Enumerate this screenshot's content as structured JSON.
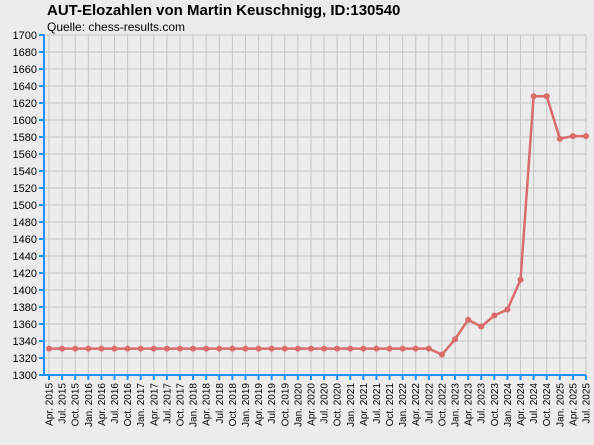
{
  "chart_data": {
    "type": "line",
    "title": "AUT-Elozahlen von Martin Keuschnigg, ID:130540",
    "subtitle": "Quelle: chess-results.com",
    "xlabel": "",
    "ylabel": "",
    "ylim": [
      1300,
      1700
    ],
    "yticks": [
      1300,
      1320,
      1340,
      1360,
      1380,
      1400,
      1420,
      1440,
      1460,
      1480,
      1500,
      1520,
      1540,
      1560,
      1580,
      1600,
      1620,
      1640,
      1660,
      1680,
      1700
    ],
    "grid": true,
    "categories": [
      "Apr. 2015",
      "Jul. 2015",
      "Oct. 2015",
      "Jan. 2016",
      "Apr. 2016",
      "Jul. 2016",
      "Oct. 2016",
      "Jan. 2017",
      "Apr. 2017",
      "Jul. 2017",
      "Oct. 2017",
      "Jan. 2018",
      "Apr. 2018",
      "Jul. 2018",
      "Oct. 2018",
      "Jan. 2019",
      "Apr. 2019",
      "Jul. 2019",
      "Oct. 2019",
      "Jan. 2020",
      "Apr. 2020",
      "Jul. 2020",
      "Oct. 2020",
      "Jan. 2021",
      "Apr. 2021",
      "Jul. 2021",
      "Oct. 2021",
      "Jan. 2022",
      "Apr. 2022",
      "Jul. 2022",
      "Oct. 2022",
      "Jan. 2023",
      "Apr. 2023",
      "Jul. 2023",
      "Oct. 2023",
      "Jan. 2024",
      "Apr. 2024",
      "Jul. 2024",
      "Oct. 2024",
      "Jan. 2025",
      "Apr. 2025",
      "Jul. 2025"
    ],
    "series": [
      {
        "values": [
          1331,
          1331,
          1331,
          1331,
          1331,
          1331,
          1331,
          1331,
          1331,
          1331,
          1331,
          1331,
          1331,
          1331,
          1331,
          1331,
          1331,
          1331,
          1331,
          1331,
          1331,
          1331,
          1331,
          1331,
          1331,
          1331,
          1331,
          1331,
          1331,
          1331,
          1324,
          1342,
          1365,
          1357,
          1370,
          1377,
          1412,
          1628,
          1628,
          1578,
          1581,
          1581
        ],
        "color": "#d96b6b"
      }
    ],
    "colors": {
      "line": "#d96b6b",
      "axis": "#1e90ff",
      "grid": "#c4c4c4",
      "background": "#ececec"
    }
  }
}
